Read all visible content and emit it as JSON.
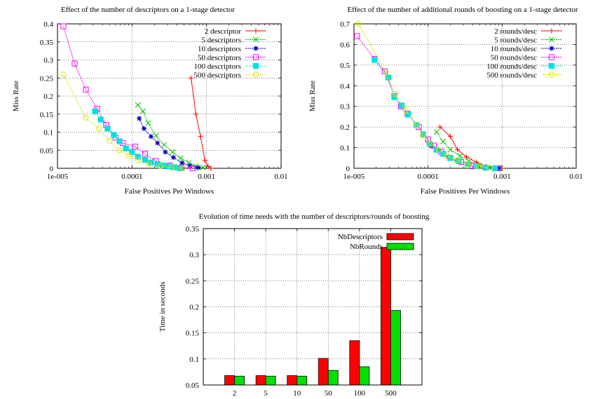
{
  "chart_data": [
    {
      "type": "line",
      "title": "Effect of the number of descriptors on a 1-stage detector",
      "xlabel": "False Positives Per Windows",
      "ylabel": "Miss Rate",
      "xscale": "log",
      "xlim": [
        1e-05,
        0.01
      ],
      "ylim": [
        0,
        0.4
      ],
      "xticks": [
        "1e-005",
        "0.0001",
        "0.001",
        "0.01"
      ],
      "yticks": [
        "0",
        "0.05",
        "0.1",
        "0.15",
        "0.2",
        "0.25",
        "0.3",
        "0.35",
        "0.4"
      ],
      "grid": true,
      "legend": "top-right",
      "series": [
        {
          "name": "2 descriptor",
          "color": "#ff0000",
          "marker": "plus",
          "points": [
            [
              0.00062,
              0.25
            ],
            [
              0.00072,
              0.15
            ],
            [
              0.00083,
              0.088
            ],
            [
              0.00095,
              0.022
            ],
            [
              0.00105,
              0.005
            ],
            [
              0.00115,
              0.0
            ]
          ]
        },
        {
          "name": "5 descriptors",
          "color": "#00c000",
          "marker": "cross",
          "points": [
            [
              0.00012,
              0.175
            ],
            [
              0.00014,
              0.158
            ],
            [
              0.000165,
              0.125
            ],
            [
              0.00021,
              0.09
            ],
            [
              0.00027,
              0.065
            ],
            [
              0.00035,
              0.045
            ],
            [
              0.00045,
              0.028
            ],
            [
              0.00058,
              0.015
            ],
            [
              0.00072,
              0.006
            ],
            [
              0.0009,
              0.002
            ]
          ]
        },
        {
          "name": "10 descriptors",
          "color": "#0000c0",
          "marker": "star",
          "points": [
            [
              0.000125,
              0.138
            ],
            [
              0.000145,
              0.11
            ],
            [
              0.00018,
              0.088
            ],
            [
              0.00022,
              0.07
            ],
            [
              0.00028,
              0.045
            ],
            [
              0.00036,
              0.03
            ],
            [
              0.00047,
              0.015
            ],
            [
              0.0006,
              0.007
            ],
            [
              0.00077,
              0.002
            ]
          ]
        },
        {
          "name": "50 descriptors",
          "color": "#ff00ff",
          "marker": "square",
          "points": [
            [
              1.2e-05,
              0.393
            ],
            [
              1.7e-05,
              0.29
            ],
            [
              2.4e-05,
              0.218
            ],
            [
              3.4e-05,
              0.165
            ],
            [
              4.5e-05,
              0.12
            ],
            [
              6e-05,
              0.085
            ],
            [
              7.5e-05,
              0.07
            ],
            [
              0.00011,
              0.06
            ],
            [
              0.00015,
              0.04
            ],
            [
              0.00021,
              0.02
            ],
            [
              0.00032,
              0.008
            ],
            [
              0.00046,
              0.002
            ],
            [
              0.00065,
              0.0
            ]
          ]
        },
        {
          "name": "100 descriptors",
          "color": "#00e0e0",
          "marker": "filled-square",
          "points": [
            [
              3.2e-05,
              0.158
            ],
            [
              3.8e-05,
              0.135
            ],
            [
              4.7e-05,
              0.11
            ],
            [
              5.7e-05,
              0.092
            ],
            [
              6.8e-05,
              0.075
            ],
            [
              8.3e-05,
              0.055
            ],
            [
              0.0001,
              0.045
            ],
            [
              0.00012,
              0.032
            ],
            [
              0.00015,
              0.023
            ],
            [
              0.00018,
              0.016
            ],
            [
              0.00022,
              0.012
            ],
            [
              0.00026,
              0.008
            ],
            [
              0.00031,
              0.005
            ],
            [
              0.00037,
              0.003
            ],
            [
              0.00044,
              0.0
            ]
          ]
        },
        {
          "name": "500 descriptors",
          "color": "#e0e000",
          "marker": "circle",
          "points": [
            [
              1.2e-05,
              0.26
            ],
            [
              2.4e-05,
              0.14
            ],
            [
              3.6e-05,
              0.11
            ],
            [
              5e-05,
              0.075
            ],
            [
              6.8e-05,
              0.05
            ],
            [
              9e-05,
              0.035
            ],
            [
              0.00012,
              0.022
            ],
            [
              0.00017,
              0.012
            ],
            [
              0.00024,
              0.006
            ],
            [
              0.00034,
              0.002
            ],
            [
              0.00048,
              0.0
            ]
          ]
        }
      ]
    },
    {
      "type": "line",
      "title": "Effect of the number of additional rounds of boosting on a 1-stage detector",
      "xlabel": "False Positives Per Windows",
      "ylabel": "Miss Rate",
      "xscale": "log",
      "xlim": [
        1e-05,
        0.01
      ],
      "ylim": [
        0,
        0.7
      ],
      "xticks": [
        "1e-005",
        "0.0001",
        "0.001",
        "0.01"
      ],
      "yticks": [
        "0",
        "0.1",
        "0.2",
        "0.3",
        "0.4",
        "0.5",
        "0.6",
        "0.7"
      ],
      "grid": true,
      "legend": "top-right",
      "series": [
        {
          "name": "2 rounds/desc",
          "color": "#ff0000",
          "marker": "plus",
          "points": [
            [
              0.000145,
              0.2
            ],
            [
              0.0002,
              0.155
            ],
            [
              0.00025,
              0.09
            ],
            [
              0.00033,
              0.055
            ],
            [
              0.00045,
              0.03
            ],
            [
              0.0006,
              0.01
            ],
            [
              0.0008,
              0.002
            ],
            [
              0.001,
              0.0
            ]
          ]
        },
        {
          "name": "5 rounds/desc",
          "color": "#00c000",
          "marker": "cross",
          "points": [
            [
              0.00013,
              0.175
            ],
            [
              0.00016,
              0.13
            ],
            [
              0.0002,
              0.09
            ],
            [
              0.00027,
              0.06
            ],
            [
              0.00036,
              0.035
            ],
            [
              0.00049,
              0.015
            ],
            [
              0.00066,
              0.005
            ],
            [
              0.00095,
              0.0
            ]
          ]
        },
        {
          "name": "10 rounds/desc",
          "color": "#0000c0",
          "marker": "star",
          "points": [
            [
              0.00011,
              0.11
            ],
            [
              0.00014,
              0.085
            ],
            [
              0.00019,
              0.055
            ],
            [
              0.00025,
              0.035
            ],
            [
              0.00034,
              0.02
            ],
            [
              0.00046,
              0.008
            ],
            [
              0.00062,
              0.003
            ],
            [
              0.0009,
              0.0
            ]
          ]
        },
        {
          "name": "50 rounds/desc",
          "color": "#ff00ff",
          "marker": "square",
          "points": [
            [
              1.1e-05,
              0.64
            ],
            [
              1.9e-05,
              0.53
            ],
            [
              2.6e-05,
              0.47
            ],
            [
              3.5e-05,
              0.35
            ],
            [
              4.3e-05,
              0.3
            ],
            [
              5.3e-05,
              0.265
            ],
            [
              7.5e-05,
              0.2
            ],
            [
              0.0001,
              0.14
            ],
            [
              0.00012,
              0.11
            ],
            [
              0.00015,
              0.08
            ],
            [
              0.0002,
              0.05
            ],
            [
              0.00028,
              0.03
            ],
            [
              0.0004,
              0.01
            ],
            [
              0.0006,
              0.003
            ],
            [
              0.0009,
              0.0
            ]
          ]
        },
        {
          "name": "100 rounds/desc",
          "color": "#00e0e0",
          "marker": "filled-square",
          "points": [
            [
              1.9e-05,
              0.525
            ],
            [
              2.9e-05,
              0.44
            ],
            [
              3.5e-05,
              0.345
            ],
            [
              4.4e-05,
              0.305
            ],
            [
              5.4e-05,
              0.26
            ],
            [
              7e-05,
              0.21
            ],
            [
              8.6e-05,
              0.165
            ],
            [
              0.000105,
              0.12
            ],
            [
              0.00013,
              0.09
            ],
            [
              0.00016,
              0.07
            ],
            [
              0.0002,
              0.05
            ],
            [
              0.00026,
              0.035
            ],
            [
              0.00034,
              0.02
            ],
            [
              0.00045,
              0.01
            ],
            [
              0.0006,
              0.003
            ],
            [
              0.0008,
              0.0
            ]
          ]
        },
        {
          "name": "500 rounds/desc",
          "color": "#e0e000",
          "marker": "circle",
          "points": [
            [
              1.15e-05,
              0.7
            ],
            [
              2.7e-05,
              0.465
            ],
            [
              3.6e-05,
              0.36
            ],
            [
              5e-05,
              0.28
            ],
            [
              7.1e-05,
              0.21
            ],
            [
              8.5e-05,
              0.16
            ],
            [
              0.00011,
              0.12
            ],
            [
              0.00014,
              0.09
            ],
            [
              0.00018,
              0.06
            ],
            [
              0.00024,
              0.04
            ],
            [
              0.00034,
              0.02
            ],
            [
              0.00048,
              0.008
            ],
            [
              0.00068,
              0.002
            ]
          ]
        }
      ]
    },
    {
      "type": "bar",
      "title": "Evolution of time needs with the number of descriptors/rounds of boosting",
      "xlabel": "",
      "ylabel": "Time in seconds",
      "categories": [
        "2",
        "5",
        "10",
        "50",
        "100",
        "500"
      ],
      "ylim": [
        0.05,
        0.35
      ],
      "yticks": [
        "0.05",
        "0.1",
        "0.15",
        "0.2",
        "0.25",
        "0.3",
        "0.35"
      ],
      "grid": true,
      "legend": "top-right",
      "series": [
        {
          "name": "NbDescriptors",
          "color": "#ff0000",
          "values": [
            0.068,
            0.068,
            0.068,
            0.101,
            0.135,
            0.314
          ]
        },
        {
          "name": "NbRounds",
          "color": "#00e000",
          "values": [
            0.067,
            0.067,
            0.067,
            0.078,
            0.085,
            0.193
          ]
        }
      ]
    }
  ]
}
